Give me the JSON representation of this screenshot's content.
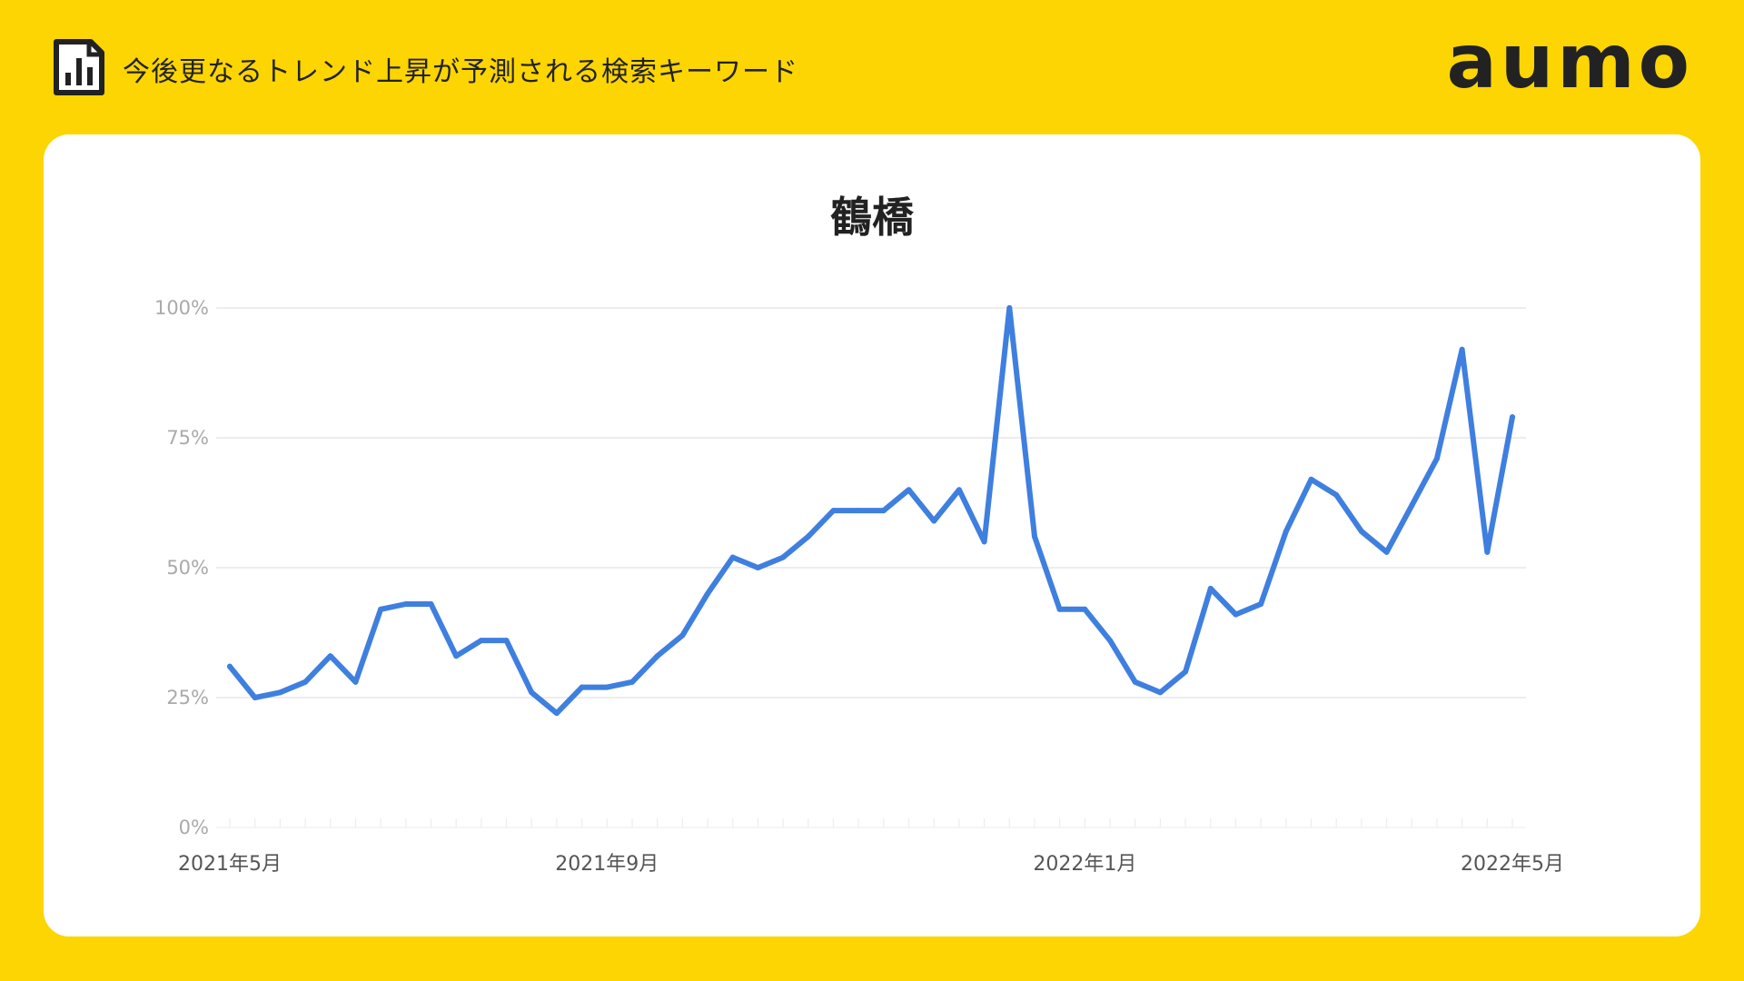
{
  "header": {
    "title": "今後更なるトレンド上昇が予測される検索キーワード",
    "icon": "bar-chart-icon",
    "logo_text": "aumo"
  },
  "colors": {
    "background": "#FCD502",
    "card": "#FFFFFF",
    "line": "#3E7FE0",
    "grid": "#E2E2E2"
  },
  "chart_data": {
    "type": "line",
    "title": "鶴橋",
    "ylim": [
      0,
      100
    ],
    "y_ticks": [
      {
        "value": 0,
        "label": "0%"
      },
      {
        "value": 25,
        "label": "25%"
      },
      {
        "value": 50,
        "label": "50%"
      },
      {
        "value": 75,
        "label": "75%"
      },
      {
        "value": 100,
        "label": "100%"
      }
    ],
    "x_ticks": [
      {
        "index": 0,
        "label": "2021年5月"
      },
      {
        "index": 15,
        "label": "2021年9月"
      },
      {
        "index": 34,
        "label": "2022年1月"
      },
      {
        "index": 51,
        "label": "2022年5月"
      }
    ],
    "grid": true,
    "series": [
      {
        "values": [
          31,
          25,
          26,
          28,
          33,
          28,
          42,
          43,
          43,
          33,
          36,
          36,
          26,
          22,
          27,
          27,
          28,
          33,
          37,
          45,
          52,
          50,
          52,
          56,
          61,
          61,
          61,
          65,
          59,
          65,
          55,
          100,
          56,
          42,
          42,
          36,
          28,
          26,
          30,
          46,
          41,
          43,
          57,
          67,
          64,
          57,
          53,
          62,
          71,
          92,
          53,
          79
        ]
      }
    ]
  }
}
